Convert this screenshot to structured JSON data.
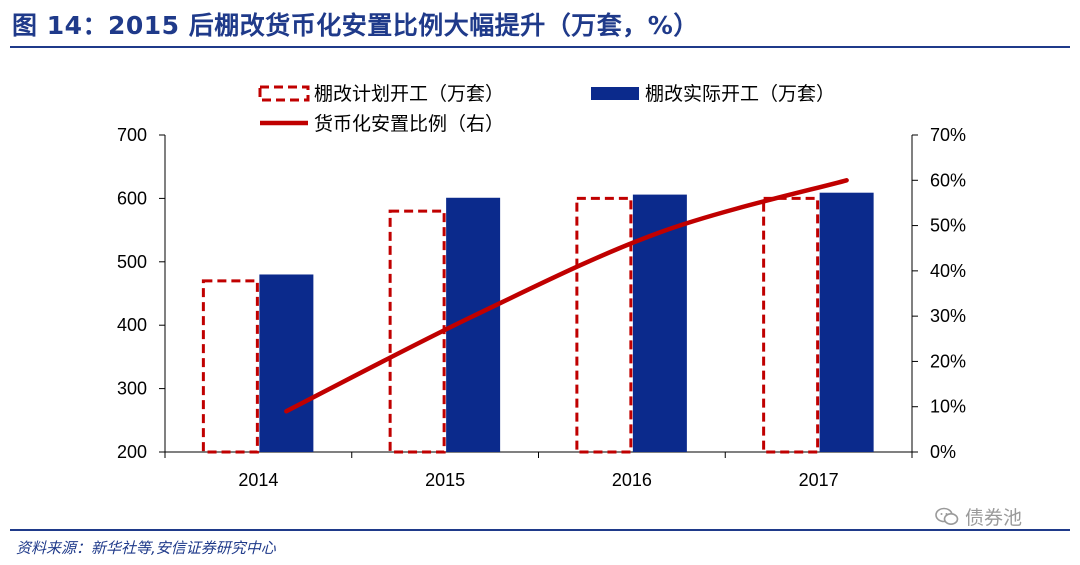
{
  "figure": {
    "title": "图 14：2015 后棚改货币化安置比例大幅提升（万套，%）",
    "source": "资料来源：新华社等,安信证券研究中心",
    "watermark": "债券池"
  },
  "colors": {
    "planned": "#c00000",
    "actual": "#0b2a8c",
    "ratio": "#c00000",
    "frame": "#1f3a8a"
  },
  "chart_data": {
    "type": "bar",
    "categories": [
      "2014",
      "2015",
      "2016",
      "2017"
    ],
    "series": [
      {
        "name": "棚改计划开工（万套）",
        "values": [
          470,
          580,
          600,
          600
        ],
        "style": "dashed-outline",
        "axis": "left"
      },
      {
        "name": "棚改实际开工（万套）",
        "values": [
          480,
          601,
          606,
          609
        ],
        "style": "solid",
        "axis": "left"
      },
      {
        "name": "货币化安置比例（右）",
        "type": "line",
        "values": [
          9,
          30,
          48.5,
          60
        ],
        "axis": "right"
      }
    ],
    "ylim": [
      200,
      700
    ],
    "y2lim": [
      0,
      70
    ],
    "y_ticks": [
      "200",
      "300",
      "400",
      "500",
      "600",
      "700"
    ],
    "y2_ticks": [
      "0%",
      "10%",
      "20%",
      "30%",
      "40%",
      "50%",
      "60%",
      "70%"
    ],
    "legend_position": "top",
    "grid": false
  }
}
